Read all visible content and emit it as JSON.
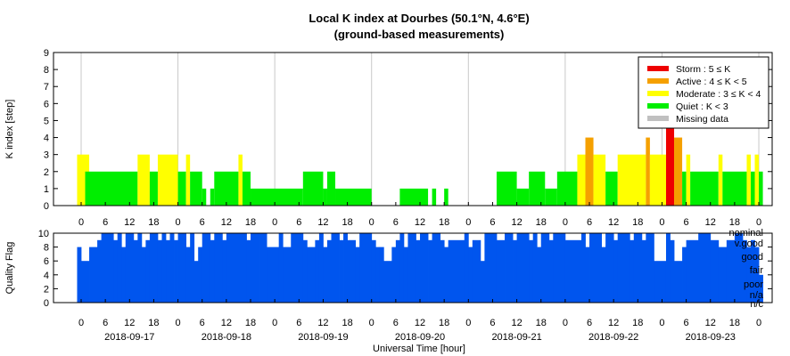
{
  "chart_data": [
    {
      "type": "bar",
      "title": "Local K index at Dourbes (50.1°N, 4.6°E)",
      "subtitle": "(ground-based measurements)",
      "ylabel": "K index [step]",
      "ylim": [
        0,
        9
      ],
      "yticks": [
        "0",
        "1",
        "2",
        "3",
        "4",
        "5",
        "6",
        "7",
        "8",
        "9"
      ],
      "grid": true,
      "legend_position": "top-right",
      "categories": [
        {
          "name": "Storm",
          "label": "Storm : 5 ≤ K",
          "color": "#ee0000"
        },
        {
          "name": "Active",
          "label": "Active : 4 ≤ K < 5",
          "color": "#f5a000"
        },
        {
          "name": "Moderate",
          "label": "Moderate : 3 ≤ K < 4",
          "color": "#ffff00"
        },
        {
          "name": "Quiet",
          "label": "Quiet : K < 3",
          "color": "#00ee00"
        },
        {
          "name": "Missing",
          "label": "Missing data",
          "color": "#c0c0c0"
        }
      ],
      "x_unit": "hours since 2018-09-17 00:00 UT",
      "bars": [
        [
          -1,
          2,
          3
        ],
        [
          1,
          14,
          2
        ],
        [
          14,
          17,
          3
        ],
        [
          17,
          19,
          2
        ],
        [
          19,
          24,
          3
        ],
        [
          24,
          26,
          2
        ],
        [
          26,
          27,
          3
        ],
        [
          27,
          30,
          2
        ],
        [
          30,
          31,
          1
        ],
        [
          32,
          33,
          1
        ],
        [
          33,
          39,
          2
        ],
        [
          39,
          40,
          3
        ],
        [
          40,
          42,
          2
        ],
        [
          42,
          55,
          1
        ],
        [
          55,
          60,
          2
        ],
        [
          60,
          61,
          1
        ],
        [
          61,
          63,
          2
        ],
        [
          63,
          72,
          1
        ],
        [
          79,
          86,
          1
        ],
        [
          87,
          88,
          1
        ],
        [
          90,
          91,
          1
        ],
        [
          103,
          108,
          2
        ],
        [
          108,
          111,
          1
        ],
        [
          111,
          115,
          2
        ],
        [
          115,
          118,
          1
        ],
        [
          118,
          123,
          2
        ],
        [
          123,
          125,
          3
        ],
        [
          125,
          127,
          4
        ],
        [
          127,
          130,
          3
        ],
        [
          130,
          133,
          2
        ],
        [
          133,
          140,
          3
        ],
        [
          140,
          141,
          4
        ],
        [
          141,
          145,
          3
        ],
        [
          145,
          147,
          5
        ],
        [
          147,
          149,
          4
        ],
        [
          149,
          150,
          2
        ],
        [
          150,
          151,
          3
        ],
        [
          151,
          158,
          2
        ],
        [
          158,
          159,
          3
        ],
        [
          159,
          165,
          2
        ],
        [
          165,
          166,
          3
        ],
        [
          166,
          167,
          2
        ],
        [
          167,
          168,
          3
        ],
        [
          168,
          169,
          2
        ]
      ]
    },
    {
      "type": "area",
      "ylabel": "Quality Flag",
      "ylim": [
        0,
        10
      ],
      "yticks": [
        "0",
        "2",
        "4",
        "6",
        "8",
        "10"
      ],
      "fill_color": "#0055ee",
      "flag_labels": [
        "nominal",
        "v.good",
        "good",
        "fair",
        "poor",
        "n/a",
        "n/c"
      ],
      "x_unit": "hours since 2018-09-17 00:00 UT",
      "dips": [
        [
          -1,
          0,
          8
        ],
        [
          0,
          2,
          6
        ],
        [
          2,
          4,
          8
        ],
        [
          4,
          5,
          9
        ],
        [
          5,
          8,
          10
        ],
        [
          8,
          9,
          9
        ],
        [
          9,
          10,
          10
        ],
        [
          10,
          11,
          8
        ],
        [
          11,
          13,
          10
        ],
        [
          13,
          14,
          9
        ],
        [
          14,
          15,
          10
        ],
        [
          15,
          16,
          8
        ],
        [
          16,
          17,
          9
        ],
        [
          17,
          19,
          10
        ],
        [
          19,
          20,
          9
        ],
        [
          20,
          21,
          10
        ],
        [
          21,
          22,
          9
        ],
        [
          22,
          23,
          10
        ],
        [
          23,
          24,
          9
        ],
        [
          24,
          26,
          10
        ],
        [
          26,
          27,
          8
        ],
        [
          27,
          28,
          10
        ],
        [
          28,
          29,
          6
        ],
        [
          29,
          30,
          8
        ],
        [
          30,
          32,
          10
        ],
        [
          32,
          33,
          9
        ],
        [
          33,
          35,
          10
        ],
        [
          35,
          36,
          9
        ],
        [
          36,
          41,
          10
        ],
        [
          41,
          42,
          9
        ],
        [
          42,
          44,
          10
        ],
        [
          44,
          46,
          10
        ],
        [
          46,
          49,
          8
        ],
        [
          49,
          50,
          10
        ],
        [
          50,
          52,
          8
        ],
        [
          52,
          55,
          10
        ],
        [
          55,
          56,
          9
        ],
        [
          56,
          58,
          8
        ],
        [
          58,
          59,
          9
        ],
        [
          59,
          60,
          10
        ],
        [
          60,
          61,
          8
        ],
        [
          61,
          62,
          9
        ],
        [
          62,
          64,
          10
        ],
        [
          64,
          65,
          9
        ],
        [
          65,
          66,
          10
        ],
        [
          66,
          68,
          9
        ],
        [
          68,
          69,
          8
        ],
        [
          69,
          72,
          10
        ],
        [
          72,
          73,
          9
        ],
        [
          73,
          74,
          8
        ],
        [
          74,
          75,
          8
        ],
        [
          75,
          77,
          6
        ],
        [
          77,
          78,
          8
        ],
        [
          78,
          79,
          9
        ],
        [
          79,
          80,
          10
        ],
        [
          80,
          81,
          8
        ],
        [
          81,
          83,
          10
        ],
        [
          83,
          84,
          9
        ],
        [
          84,
          86,
          10
        ],
        [
          86,
          87,
          9
        ],
        [
          87,
          89,
          10
        ],
        [
          89,
          90,
          9
        ],
        [
          90,
          91,
          8
        ],
        [
          91,
          95,
          9
        ],
        [
          95,
          96,
          10
        ],
        [
          96,
          97,
          8
        ],
        [
          97,
          99,
          9
        ],
        [
          99,
          100,
          6
        ],
        [
          100,
          103,
          10
        ],
        [
          103,
          105,
          9
        ],
        [
          105,
          107,
          10
        ],
        [
          107,
          108,
          9
        ],
        [
          108,
          111,
          10
        ],
        [
          111,
          112,
          9
        ],
        [
          112,
          113,
          10
        ],
        [
          113,
          114,
          8
        ],
        [
          114,
          116,
          10
        ],
        [
          116,
          117,
          9
        ],
        [
          117,
          120,
          10
        ],
        [
          120,
          124,
          9
        ],
        [
          124,
          125,
          10
        ],
        [
          125,
          126,
          8
        ],
        [
          126,
          129,
          10
        ],
        [
          129,
          130,
          8
        ],
        [
          130,
          132,
          10
        ],
        [
          132,
          133,
          9
        ],
        [
          133,
          136,
          10
        ],
        [
          136,
          137,
          9
        ],
        [
          137,
          139,
          10
        ],
        [
          139,
          140,
          9
        ],
        [
          140,
          142,
          10
        ],
        [
          142,
          145,
          6
        ],
        [
          145,
          146,
          10
        ],
        [
          146,
          147,
          9
        ],
        [
          147,
          149,
          6
        ],
        [
          149,
          150,
          8
        ],
        [
          150,
          153,
          9
        ],
        [
          153,
          156,
          10
        ],
        [
          156,
          158,
          9
        ],
        [
          158,
          160,
          8
        ],
        [
          160,
          162,
          9
        ],
        [
          162,
          164,
          10
        ],
        [
          164,
          165,
          9
        ],
        [
          165,
          166,
          8
        ],
        [
          166,
          167,
          9
        ],
        [
          167,
          168,
          8
        ],
        [
          168,
          169,
          4
        ]
      ]
    }
  ],
  "x_axis": {
    "title": "Universal Time [hour]",
    "hour_ticks": [
      "0",
      "6",
      "12",
      "18",
      "0",
      "6",
      "12",
      "18",
      "0",
      "6",
      "12",
      "18",
      "0",
      "6",
      "12",
      "18",
      "0",
      "6",
      "12",
      "18",
      "0",
      "6",
      "12",
      "18",
      "0",
      "6",
      "12",
      "18",
      "0"
    ],
    "dates": [
      "2018-09-17",
      "2018-09-18",
      "2018-09-19",
      "2018-09-20",
      "2018-09-21",
      "2018-09-22",
      "2018-09-23"
    ]
  }
}
